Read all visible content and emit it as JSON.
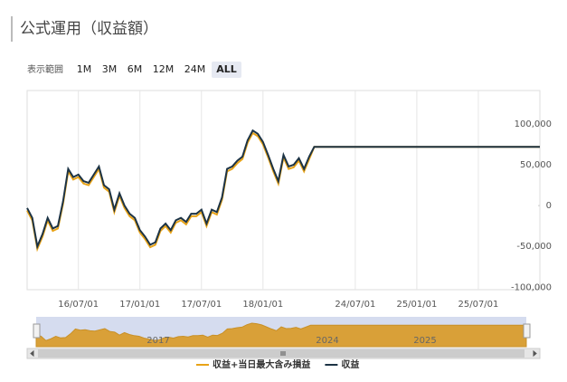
{
  "header": {
    "title": "公式運用（収益額）"
  },
  "range_selector": {
    "label": "表示範囲",
    "buttons": [
      "1M",
      "3M",
      "6M",
      "12M",
      "24M",
      "ALL"
    ],
    "selected": 5
  },
  "navigator": {
    "labels": [
      "2017",
      "2024",
      "2025"
    ]
  },
  "chart_data": {
    "type": "line",
    "categories": [
      null,
      null,
      null,
      null,
      null,
      null,
      null,
      null,
      null,
      null,
      "16/07/01",
      null,
      null,
      null,
      null,
      null,
      null,
      null,
      null,
      null,
      null,
      null,
      "17/01/01",
      null,
      null,
      null,
      null,
      null,
      null,
      null,
      null,
      null,
      null,
      null,
      "17/07/01",
      null,
      null,
      null,
      null,
      null,
      null,
      null,
      null,
      null,
      null,
      null,
      "18/01/01",
      null,
      null,
      null,
      null,
      null,
      null,
      null,
      null,
      null,
      null,
      null,
      null,
      null,
      null,
      null,
      null,
      null,
      "24/07/01",
      null,
      null,
      null,
      null,
      null,
      null,
      null,
      null,
      null,
      null,
      null,
      "25/01/01",
      null,
      null,
      null,
      null,
      null,
      null,
      null,
      null,
      null,
      null,
      null,
      "25/07/01",
      null,
      null,
      null,
      null,
      null,
      null,
      null,
      null,
      null,
      null,
      null,
      null
    ],
    "series": [
      {
        "name": "収益+当日最大含み損益",
        "color": "#e8a317",
        "values": [
          -6000,
          -18000,
          -53000,
          -38000,
          -18000,
          -31000,
          -28000,
          2000,
          42000,
          32000,
          35000,
          27000,
          25000,
          35000,
          45000,
          22000,
          17000,
          -8000,
          12000,
          -3000,
          -13000,
          -18000,
          -33000,
          -41000,
          -51000,
          -48000,
          -31000,
          -25000,
          -33000,
          -21000,
          -18000,
          -23000,
          -13000,
          -13000,
          -8000,
          -25000,
          -8000,
          -11000,
          7000,
          42000,
          45000,
          52000,
          57000,
          77000,
          89000,
          85000,
          75000,
          59000,
          42000,
          27000,
          59000,
          45000,
          47000,
          55000,
          42000,
          57000,
          72000,
          72000,
          72000,
          72000,
          72000,
          72000,
          72000,
          72000,
          72000,
          72000,
          72000,
          72000,
          72000,
          72000,
          72000,
          72000,
          72000,
          72000,
          72000,
          72000,
          72000,
          72000,
          72000,
          72000,
          72000,
          72000,
          72000,
          72000,
          72000,
          72000,
          72000,
          72000,
          72000,
          72000,
          72000,
          72000,
          72000,
          72000,
          72000,
          72000,
          72000,
          72000,
          72000,
          72000,
          72000
        ]
      },
      {
        "name": "収益",
        "color": "#1c3345",
        "values": [
          -3000,
          -15000,
          -50000,
          -35000,
          -15000,
          -28000,
          -25000,
          5000,
          45000,
          35000,
          38000,
          30000,
          28000,
          38000,
          48000,
          25000,
          20000,
          -5000,
          15000,
          0,
          -10000,
          -15000,
          -30000,
          -38000,
          -48000,
          -45000,
          -28000,
          -22000,
          -30000,
          -18000,
          -15000,
          -20000,
          -10000,
          -10000,
          -5000,
          -22000,
          -5000,
          -8000,
          10000,
          45000,
          48000,
          55000,
          60000,
          80000,
          92000,
          88000,
          78000,
          62000,
          45000,
          30000,
          62000,
          48000,
          50000,
          58000,
          45000,
          60000,
          72000,
          72000,
          72000,
          72000,
          72000,
          72000,
          72000,
          72000,
          72000,
          72000,
          72000,
          72000,
          72000,
          72000,
          72000,
          72000,
          72000,
          72000,
          72000,
          72000,
          72000,
          72000,
          72000,
          72000,
          72000,
          72000,
          72000,
          72000,
          72000,
          72000,
          72000,
          72000,
          72000,
          72000,
          72000,
          72000,
          72000,
          72000,
          72000,
          72000,
          72000,
          72000,
          72000,
          72000,
          72000
        ]
      }
    ],
    "ylim": [
      -103000,
      141000
    ],
    "yticks": [
      {
        "value": 100000,
        "label": "100,000"
      },
      {
        "value": 50000,
        "label": "50,000"
      },
      0,
      {
        "value": -50000,
        "label": "-50,000"
      },
      {
        "value": -100000,
        "label": "-100,000"
      }
    ],
    "grid": true
  }
}
